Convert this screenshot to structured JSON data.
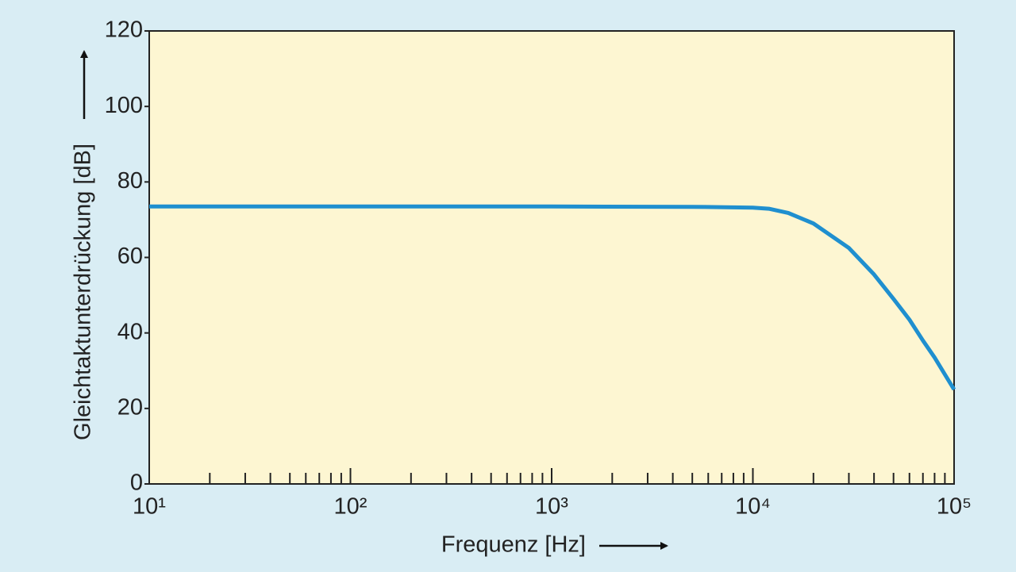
{
  "chart_data": {
    "type": "line",
    "xlabel": "Frequenz [Hz]",
    "ylabel": "Gleichtaktunterdrückung [dB]",
    "xscale": "log",
    "x": [
      10,
      100,
      1000,
      5000,
      10000,
      12000,
      15000,
      20000,
      30000,
      40000,
      50000,
      60000,
      70000,
      80000,
      90000,
      100000
    ],
    "series": [
      {
        "color": "#1f8fcf",
        "values": [
          73.5,
          73.5,
          73.5,
          73.4,
          73.2,
          72.9,
          71.8,
          69,
          62.5,
          55.5,
          49,
          43.5,
          38,
          33.5,
          29,
          25
        ]
      }
    ],
    "xlim": [
      10,
      100000
    ],
    "xticks": [
      {
        "value": 10,
        "label": "10¹"
      },
      {
        "value": 100,
        "label": "10²"
      },
      {
        "value": 1000,
        "label": "10³"
      },
      {
        "value": 10000,
        "label": "10⁴"
      },
      {
        "value": 100000,
        "label": "10⁵"
      }
    ],
    "xminorticks": [
      20,
      30,
      40,
      50,
      60,
      70,
      80,
      90,
      200,
      300,
      400,
      500,
      600,
      700,
      800,
      900,
      2000,
      3000,
      4000,
      5000,
      6000,
      7000,
      8000,
      9000,
      20000,
      30000,
      40000,
      50000,
      60000,
      70000,
      80000,
      90000
    ],
    "ylim": [
      0,
      120
    ],
    "yticks": [
      0,
      20,
      40,
      60,
      80,
      100,
      120
    ],
    "grid": false,
    "plot_background": "#fdf6d2"
  }
}
